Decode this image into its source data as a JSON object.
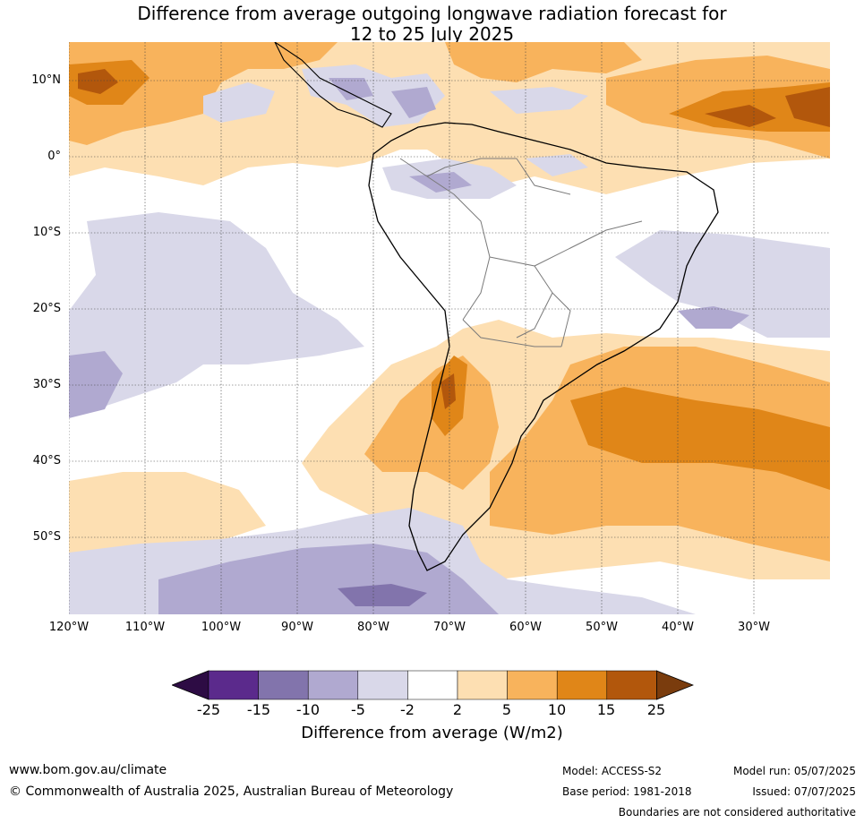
{
  "title": {
    "line1": "Difference from average outgoing longwave radiation forecast for",
    "line2": "12 to 25 July 2025"
  },
  "map": {
    "lat_labels": [
      "10°N",
      "0°",
      "10°S",
      "20°S",
      "30°S",
      "40°S",
      "50°S"
    ],
    "lon_labels": [
      "120°W",
      "110°W",
      "100°W",
      "90°W",
      "80°W",
      "70°W",
      "60°W",
      "50°W",
      "40°W",
      "30°W"
    ],
    "extent": {
      "lon_min": -120,
      "lon_max": -20,
      "lat_min": -60,
      "lat_max": 15
    }
  },
  "legend": {
    "ticks": [
      "-25",
      "-15",
      "-10",
      "-5",
      "-2",
      "2",
      "5",
      "10",
      "15",
      "25"
    ],
    "colors": [
      "#2d0c44",
      "#5b2a8c",
      "#8274ac",
      "#b0a9d0",
      "#d9d8e9",
      "#ffffff",
      "#fddfb2",
      "#f8b35c",
      "#e08618",
      "#b2570c",
      "#7a3c0d"
    ],
    "label": "Difference from average (W/m2)"
  },
  "footer": {
    "website": "www.bom.gov.au/climate",
    "copyright": "© Commonwealth of Australia 2025, Australian Bureau of Meteorology",
    "model": "Model: ACCESS-S2",
    "base_period": "Base period: 1981-2018",
    "model_run": "Model run: 05/07/2025",
    "issued": "Issued: 07/07/2025",
    "disclaimer": "Boundaries are not considered authoritative"
  }
}
